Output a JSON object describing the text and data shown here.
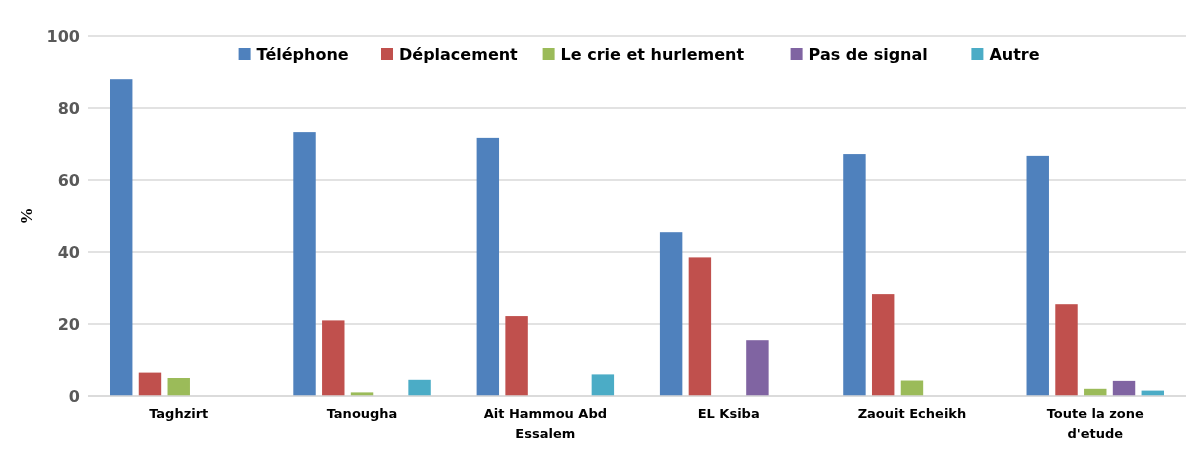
{
  "chart_data": {
    "type": "bar",
    "ylabel": "%",
    "categories": [
      "Taghzirt",
      "Tanougha",
      "Ait Hammou Abd Essalem",
      "EL Ksiba",
      "Zaouit Echeikh",
      "Toute la zone d'etude"
    ],
    "series": [
      {
        "name": "Téléphone",
        "color": "#4f81bd",
        "values": [
          88,
          73.3,
          71.7,
          45.5,
          67.2,
          66.7
        ]
      },
      {
        "name": "Déplacement",
        "color": "#c0504d",
        "values": [
          6.5,
          21,
          22.2,
          38.5,
          28.3,
          25.5
        ]
      },
      {
        "name": "Le crie et hurlement",
        "color": "#9bbb59",
        "values": [
          5,
          1,
          0,
          0,
          4.3,
          2
        ]
      },
      {
        "name": "Pas de signal",
        "color": "#8064a2",
        "values": [
          0,
          0,
          0,
          15.5,
          0,
          4.2
        ]
      },
      {
        "name": "Autre",
        "color": "#4bacc6",
        "values": [
          0,
          4.5,
          6,
          0,
          0,
          1.5
        ]
      }
    ],
    "ylim": [
      0,
      100
    ],
    "yticks": [
      0,
      20,
      40,
      60,
      80,
      100
    ],
    "grid": "y",
    "legend": "top"
  }
}
